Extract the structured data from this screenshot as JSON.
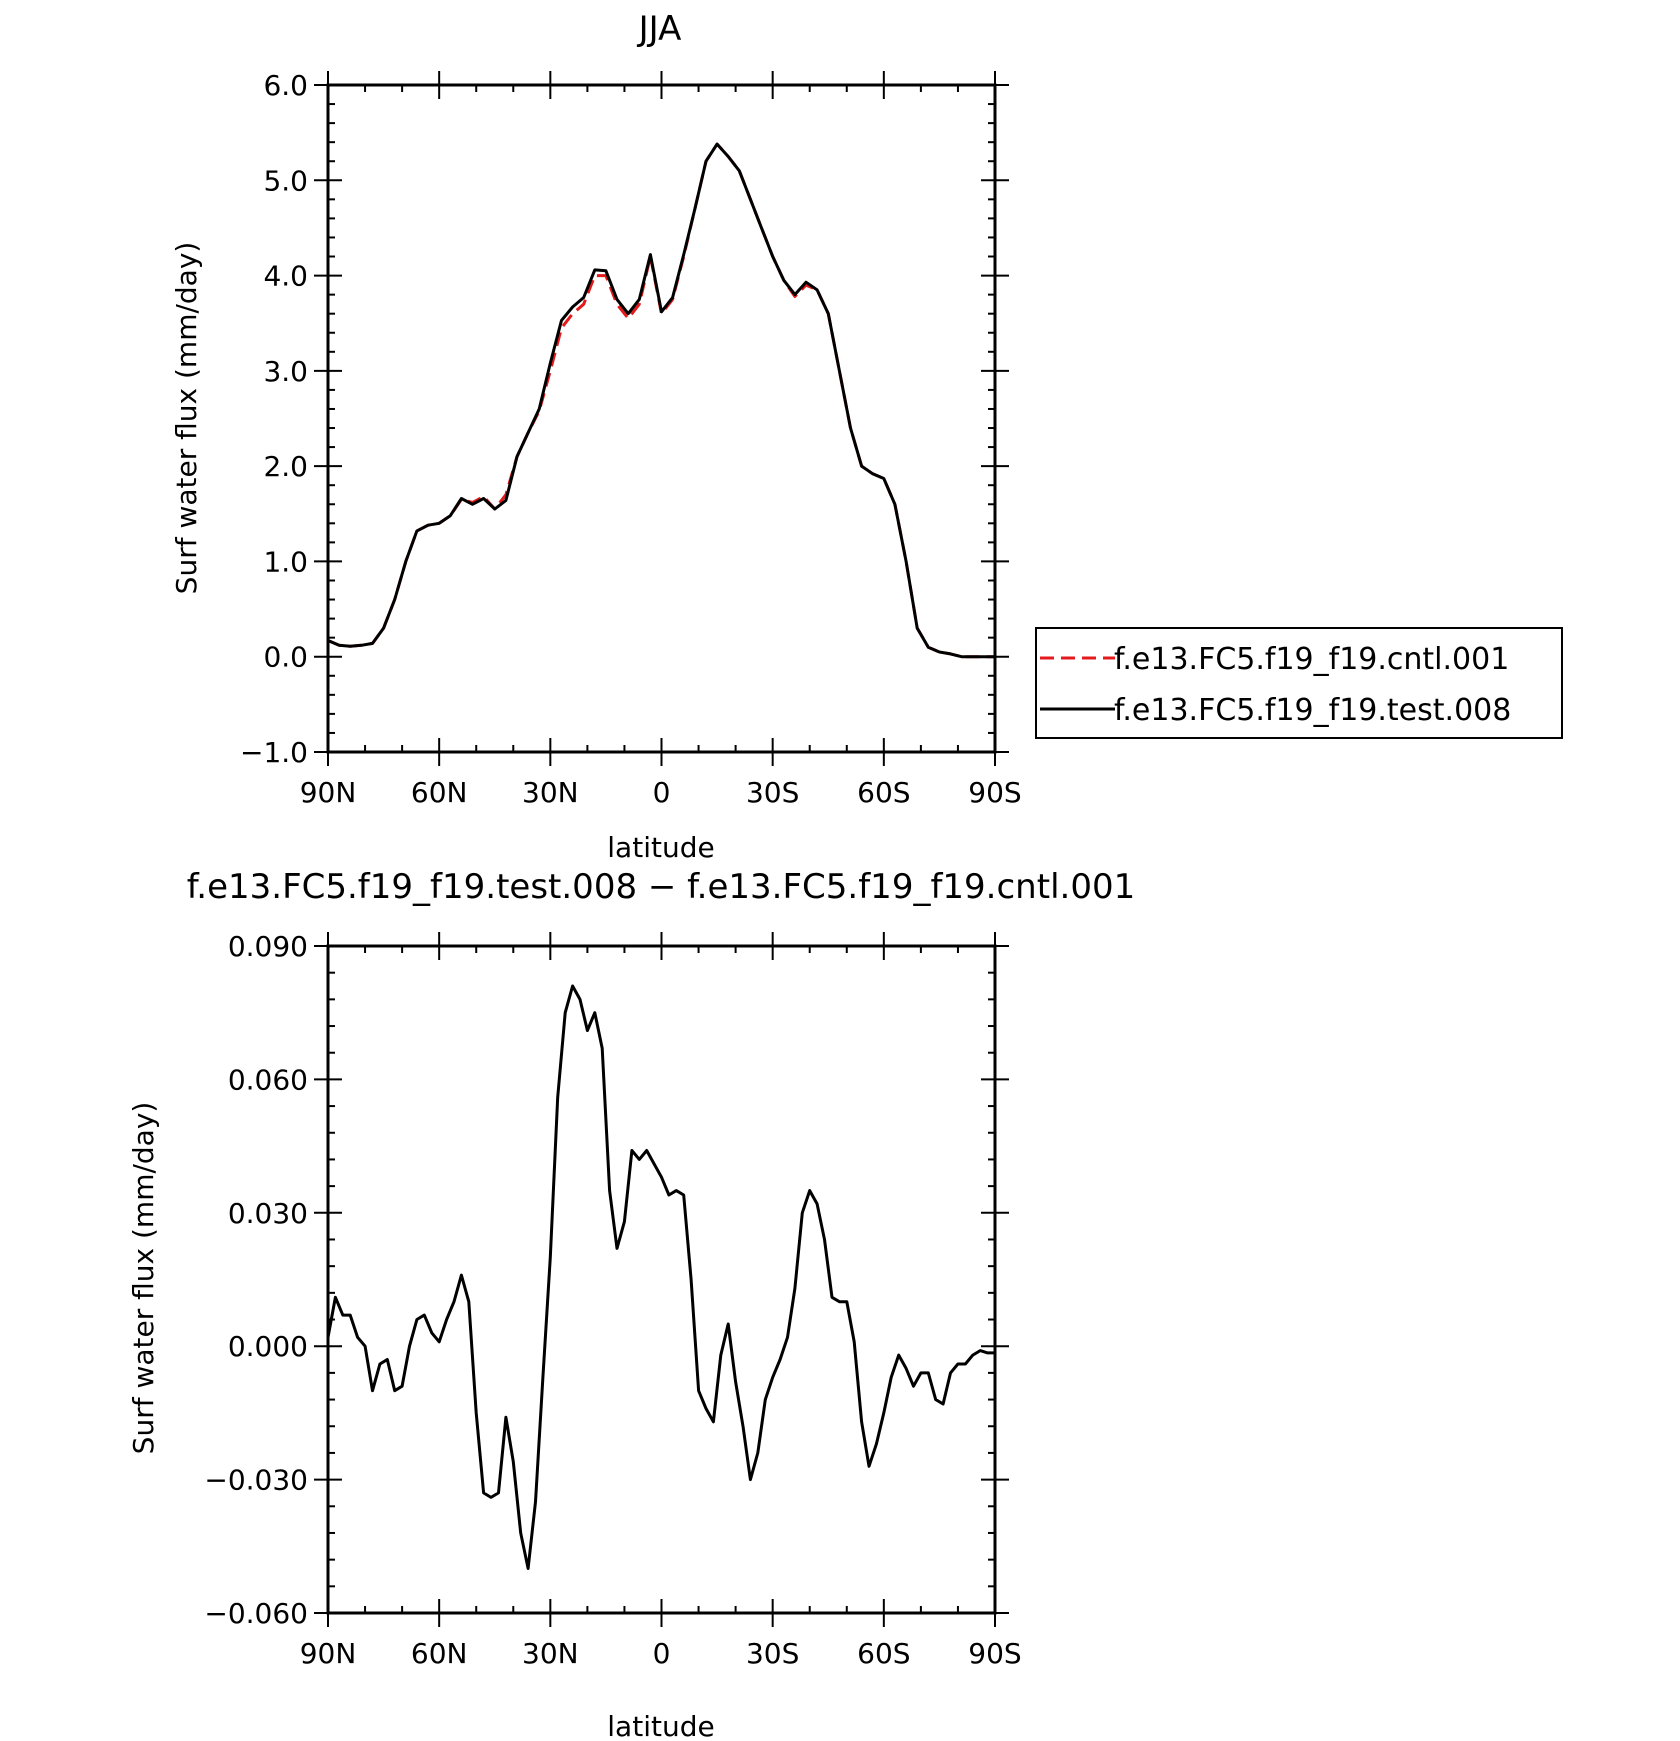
{
  "chart_data": [
    {
      "type": "line",
      "title": "JJA",
      "xlabel": "latitude",
      "ylabel": "Surf water flux (mm/day)",
      "ylim": [
        -1.0,
        6.0
      ],
      "yticks": [
        "−1.0",
        "0.0",
        "1.0",
        "2.0",
        "3.0",
        "4.0",
        "5.0",
        "6.0"
      ],
      "ytick_values": [
        -1,
        0,
        1,
        2,
        3,
        4,
        5,
        6
      ],
      "xticks": [
        "90N",
        "60N",
        "30N",
        "0",
        "30S",
        "60S",
        "90S"
      ],
      "xtick_values": [
        90,
        60,
        30,
        0,
        -30,
        -60,
        -90
      ],
      "xlim": [
        90,
        -90
      ],
      "legend_position": "right",
      "series": [
        {
          "name": "f.e13.FC5.f19_f19.cntl.001",
          "color": "#e41a1c",
          "style": "dashed",
          "x": [
            90,
            87,
            84,
            81,
            78,
            75,
            72,
            69,
            66,
            63,
            60,
            57,
            54,
            51,
            48,
            45,
            42,
            39,
            36,
            33,
            30,
            27,
            24,
            21,
            18,
            15,
            12,
            9,
            6,
            3,
            0,
            -3,
            -6,
            -9,
            -12,
            -15,
            -18,
            -21,
            -24,
            -27,
            -30,
            -33,
            -36,
            -39,
            -42,
            -45,
            -48,
            -51,
            -54,
            -57,
            -60,
            -63,
            -66,
            -69,
            -72,
            -75,
            -78,
            -81,
            -84,
            -87,
            -90
          ],
          "values": [
            0.17,
            0.12,
            0.11,
            0.12,
            0.14,
            0.3,
            0.6,
            1.0,
            1.32,
            1.38,
            1.4,
            1.48,
            1.65,
            1.62,
            1.68,
            1.55,
            1.7,
            2.1,
            2.35,
            2.58,
            3.0,
            3.45,
            3.6,
            3.7,
            4.0,
            4.0,
            3.7,
            3.55,
            3.7,
            4.2,
            3.6,
            3.75,
            4.2,
            4.7,
            5.2,
            5.38,
            5.25,
            5.1,
            4.8,
            4.5,
            4.2,
            3.95,
            3.78,
            3.9,
            3.85,
            3.6,
            3.0,
            2.4,
            2.0,
            1.92,
            1.87,
            1.6,
            1.0,
            0.3,
            0.1,
            0.05,
            0.03,
            0.0,
            0.0,
            0.0,
            0.0
          ]
        },
        {
          "name": "f.e13.FC5.f19_f19.test.008",
          "color": "#000000",
          "style": "solid",
          "x": [
            90,
            87,
            84,
            81,
            78,
            75,
            72,
            69,
            66,
            63,
            60,
            57,
            54,
            51,
            48,
            45,
            42,
            39,
            36,
            33,
            30,
            27,
            24,
            21,
            18,
            15,
            12,
            9,
            6,
            3,
            0,
            -3,
            -6,
            -9,
            -12,
            -15,
            -18,
            -21,
            -24,
            -27,
            -30,
            -33,
            -36,
            -39,
            -42,
            -45,
            -48,
            -51,
            -54,
            -57,
            -60,
            -63,
            -66,
            -69,
            -72,
            -75,
            -78,
            -81,
            -84,
            -87,
            -90
          ],
          "values": [
            0.17,
            0.12,
            0.11,
            0.12,
            0.14,
            0.3,
            0.6,
            1.0,
            1.32,
            1.38,
            1.4,
            1.48,
            1.66,
            1.6,
            1.66,
            1.55,
            1.64,
            2.1,
            2.35,
            2.6,
            3.08,
            3.53,
            3.67,
            3.77,
            4.06,
            4.05,
            3.75,
            3.6,
            3.75,
            4.22,
            3.62,
            3.77,
            4.22,
            4.7,
            5.2,
            5.38,
            5.25,
            5.1,
            4.8,
            4.5,
            4.2,
            3.95,
            3.8,
            3.93,
            3.85,
            3.6,
            3.0,
            2.4,
            2.0,
            1.92,
            1.87,
            1.6,
            1.0,
            0.3,
            0.1,
            0.05,
            0.03,
            0.0,
            0.0,
            0.0,
            0.0
          ]
        }
      ]
    },
    {
      "type": "line",
      "title": "f.e13.FC5.f19_f19.test.008 − f.e13.FC5.f19_f19.cntl.001",
      "xlabel": "latitude",
      "ylabel": "Surf water flux (mm/day)",
      "ylim": [
        -0.06,
        0.09
      ],
      "yticks": [
        "−0.060",
        "−0.030",
        "0.000",
        "0.030",
        "0.060",
        "0.090"
      ],
      "ytick_values": [
        -0.06,
        -0.03,
        0.0,
        0.03,
        0.06,
        0.09
      ],
      "xticks": [
        "90N",
        "60N",
        "30N",
        "0",
        "30S",
        "60S",
        "90S"
      ],
      "xtick_values": [
        90,
        60,
        30,
        0,
        -30,
        -60,
        -90
      ],
      "xlim": [
        90,
        -90
      ],
      "series": [
        {
          "color": "#000000",
          "style": "solid",
          "x": [
            90,
            88,
            86,
            84,
            82,
            80,
            78,
            76,
            74,
            72,
            70,
            68,
            66,
            64,
            62,
            60,
            58,
            56,
            54,
            52,
            50,
            48,
            46,
            44,
            42,
            40,
            38,
            36,
            34,
            32,
            30,
            28,
            26,
            24,
            22,
            20,
            18,
            16,
            14,
            12,
            10,
            8,
            6,
            4,
            2,
            0,
            -2,
            -4,
            -6,
            -8,
            -10,
            -12,
            -14,
            -16,
            -18,
            -20,
            -22,
            -24,
            -26,
            -28,
            -30,
            -32,
            -34,
            -36,
            -38,
            -40,
            -42,
            -44,
            -46,
            -48,
            -50,
            -52,
            -54,
            -56,
            -58,
            -60,
            -62,
            -64,
            -66,
            -68,
            -70,
            -72,
            -74,
            -76,
            -78,
            -80,
            -82,
            -84,
            -86,
            -88,
            -90
          ],
          "values": [
            0.002,
            0.011,
            0.007,
            0.007,
            0.002,
            0.0,
            -0.01,
            -0.004,
            -0.003,
            -0.01,
            -0.009,
            0.0,
            0.006,
            0.007,
            0.003,
            0.001,
            0.006,
            0.01,
            0.016,
            0.01,
            -0.015,
            -0.033,
            -0.034,
            -0.033,
            -0.016,
            -0.026,
            -0.042,
            -0.05,
            -0.035,
            -0.007,
            0.02,
            0.056,
            0.075,
            0.081,
            0.078,
            0.071,
            0.075,
            0.067,
            0.035,
            0.022,
            0.028,
            0.044,
            0.042,
            0.044,
            0.041,
            0.038,
            0.034,
            0.035,
            0.034,
            0.015,
            -0.01,
            -0.014,
            -0.017,
            -0.002,
            0.005,
            -0.008,
            -0.018,
            -0.03,
            -0.024,
            -0.012,
            -0.007,
            -0.003,
            0.002,
            0.013,
            0.03,
            0.035,
            0.032,
            0.024,
            0.011,
            0.01,
            0.01,
            0.001,
            -0.017,
            -0.027,
            -0.022,
            -0.015,
            -0.007,
            -0.002,
            -0.005,
            -0.009,
            -0.006,
            -0.006,
            -0.012,
            -0.013,
            -0.006,
            -0.004,
            -0.004,
            -0.002,
            -0.001,
            -0.0015,
            -0.0015
          ]
        }
      ]
    }
  ]
}
